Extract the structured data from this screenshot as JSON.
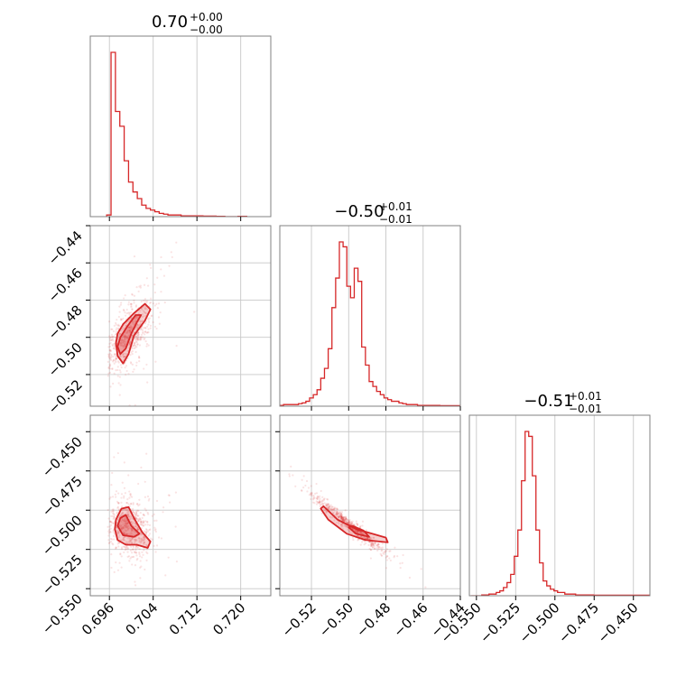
{
  "colors": {
    "accent": "#d62728",
    "grid": "#c8c8c8",
    "frame": "#808080"
  },
  "chart_data": {
    "type": "corner",
    "parameters": [
      {
        "title": {
          "value": "0.70",
          "plus": "+0.00",
          "minus": "−0.00"
        },
        "range": [
          0.6925,
          0.7255
        ],
        "ticks": [
          {
            "v": 0.696,
            "label": "0.696"
          },
          {
            "v": 0.704,
            "label": "0.704"
          },
          {
            "v": 0.712,
            "label": "0.712"
          },
          {
            "v": 0.72,
            "label": "0.720"
          }
        ],
        "hist": {
          "start": 0.6955,
          "width": 0.0008,
          "counts": [
            1,
            100,
            64,
            55,
            34,
            21,
            15,
            11,
            7,
            5,
            4,
            3,
            2,
            1.5,
            1,
            1,
            1,
            0.5,
            0.5,
            0.5,
            0.5,
            0.5,
            0.3,
            0.3,
            0.3,
            0.2,
            0.2,
            0,
            0,
            0,
            0.2,
            0.2
          ]
        }
      },
      {
        "title": {
          "value": "−0.50",
          "plus": "+0.01",
          "minus": "−0.01"
        },
        "range": [
          -0.537,
          -0.44
        ],
        "ticks": [
          {
            "v": -0.52,
            "label": "−0.52"
          },
          {
            "v": -0.5,
            "label": "−0.50"
          },
          {
            "v": -0.48,
            "label": "−0.48"
          },
          {
            "v": -0.46,
            "label": "−0.46"
          },
          {
            "v": -0.44,
            "label": "−0.44"
          }
        ],
        "hist": {
          "start": -0.537,
          "width": 0.002,
          "counts": [
            0.5,
            1,
            1,
            1,
            1,
            1.5,
            2,
            3,
            5,
            7,
            10,
            17,
            23,
            35,
            60,
            78,
            100,
            97,
            73,
            66,
            84,
            76,
            36,
            25,
            15,
            12,
            9,
            7,
            5,
            4,
            3,
            3,
            2,
            1.5,
            1,
            1,
            1,
            0.5,
            0.5,
            0.5,
            0.5,
            0.5,
            0.5,
            0.3,
            0.3,
            0.3,
            0.3,
            0.3,
            0.3
          ]
        }
      },
      {
        "title": {
          "value": "−0.51",
          "plus": "+0.01",
          "minus": "−0.01"
        },
        "range": [
          -0.5545,
          -0.4395
        ],
        "ticks": [
          {
            "v": -0.55,
            "label": "−0.550"
          },
          {
            "v": -0.525,
            "label": "−0.525"
          },
          {
            "v": -0.5,
            "label": "−0.500"
          },
          {
            "v": -0.475,
            "label": "−0.475"
          },
          {
            "v": -0.45,
            "label": "−0.450"
          }
        ],
        "hist": {
          "start": -0.5535,
          "width": 0.0023,
          "counts": [
            0,
            0,
            0,
            0.5,
            0.5,
            1,
            1,
            2,
            3,
            5,
            8,
            13,
            24,
            40,
            70,
            100,
            97,
            73,
            40,
            20,
            9,
            6,
            4,
            3,
            2,
            2,
            1,
            1,
            1,
            0.5,
            0.5,
            0.5,
            0.5,
            0.5,
            0.3,
            0.3,
            0.3,
            0.3,
            0.3,
            0.3,
            0.3,
            0.3,
            0.3,
            0.3,
            0.3,
            0.3,
            0.3,
            0.3,
            0.3,
            0.3
          ]
        }
      }
    ],
    "pairs": [
      {
        "col": 0,
        "row": 1,
        "center": [
          0.6995,
          -0.499
        ],
        "cov": [
          [
            4.4e-06,
            1.35e-05
          ],
          [
            1.35e-05,
            9.8e-05
          ]
        ],
        "contours": [
          [
            [
              0.6972,
              -0.503
            ],
            [
              0.6975,
              -0.51
            ],
            [
              0.6985,
              -0.514
            ],
            [
              0.6995,
              -0.509
            ],
            [
              0.7005,
              -0.499
            ],
            [
              0.7025,
              -0.491
            ],
            [
              0.7035,
              -0.485
            ],
            [
              0.7025,
              -0.482
            ],
            [
              0.7005,
              -0.487
            ],
            [
              0.6985,
              -0.493
            ],
            [
              0.6975,
              -0.498
            ]
          ],
          [
            [
              0.6975,
              -0.505
            ],
            [
              0.698,
              -0.509
            ],
            [
              0.699,
              -0.506
            ],
            [
              0.7,
              -0.498
            ],
            [
              0.701,
              -0.492
            ],
            [
              0.7018,
              -0.488
            ],
            [
              0.7008,
              -0.488
            ],
            [
              0.6993,
              -0.494
            ],
            [
              0.698,
              -0.5
            ]
          ]
        ]
      },
      {
        "col": 0,
        "row": 2,
        "center": [
          0.6995,
          -0.511
        ],
        "cov": [
          [
            4.4e-06,
            -4.5e-06
          ],
          [
            -4.5e-06,
            9e-05
          ]
        ],
        "contours": [
          [
            [
              0.697,
              -0.512
            ],
            [
              0.6975,
              -0.519
            ],
            [
              0.699,
              -0.522
            ],
            [
              0.701,
              -0.522
            ],
            [
              0.703,
              -0.524
            ],
            [
              0.7035,
              -0.52
            ],
            [
              0.702,
              -0.514
            ],
            [
              0.7005,
              -0.505
            ],
            [
              0.6995,
              -0.498
            ],
            [
              0.6982,
              -0.499
            ],
            [
              0.6972,
              -0.506
            ]
          ],
          [
            [
              0.6975,
              -0.51
            ],
            [
              0.6985,
              -0.516
            ],
            [
              0.7005,
              -0.517
            ],
            [
              0.7015,
              -0.515
            ],
            [
              0.7,
              -0.51
            ],
            [
              0.699,
              -0.503
            ],
            [
              0.698,
              -0.505
            ]
          ]
        ]
      },
      {
        "col": 1,
        "row": 2,
        "center": [
          -0.5,
          -0.509
        ],
        "cov": [
          [
            9.8e-05,
            -9.2e-05
          ],
          [
            -9.2e-05,
            9e-05
          ]
        ],
        "contours": [
          [
            [
              -0.5135,
              -0.4975
            ],
            [
              -0.506,
              -0.506
            ],
            [
              -0.496,
              -0.512
            ],
            [
              -0.48,
              -0.5175
            ],
            [
              -0.479,
              -0.5205
            ],
            [
              -0.491,
              -0.519
            ],
            [
              -0.501,
              -0.515
            ],
            [
              -0.511,
              -0.506
            ],
            [
              -0.515,
              -0.499
            ]
          ],
          [
            [
              -0.5,
              -0.511
            ],
            [
              -0.496,
              -0.515
            ],
            [
              -0.489,
              -0.517
            ],
            [
              -0.492,
              -0.513
            ],
            [
              -0.498,
              -0.51
            ]
          ]
        ]
      }
    ]
  }
}
